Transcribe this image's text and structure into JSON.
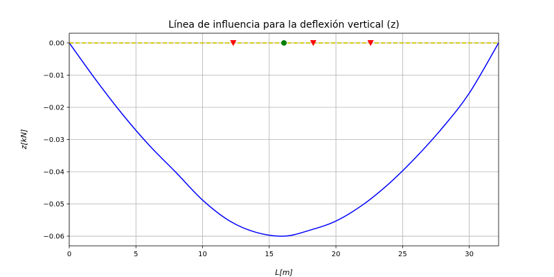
{
  "chart_data": {
    "type": "line",
    "title": "Línea de influencia para la deflexión vertical (z)",
    "xlabel": "L[m]",
    "ylabel": "z[kN]",
    "xlim": [
      0,
      32.2
    ],
    "ylim": [
      -0.063,
      0.003
    ],
    "x_ticks": [
      0,
      5,
      10,
      15,
      20,
      25,
      30
    ],
    "y_ticks": [
      0.0,
      -0.01,
      -0.02,
      -0.03,
      -0.04,
      -0.05,
      -0.06
    ],
    "x_tick_labels": [
      "0",
      "5",
      "10",
      "15",
      "20",
      "25",
      "30"
    ],
    "y_tick_labels": [
      "0.00",
      "−0.01",
      "−0.02",
      "−0.03",
      "−0.04",
      "−0.05",
      "−0.06"
    ],
    "grid": true,
    "series": [
      {
        "color": "#0000ff",
        "x": [
          0,
          2,
          4,
          6,
          8,
          10,
          12,
          14,
          16.1,
          18,
          20,
          22,
          24,
          26,
          28,
          30,
          32.2
        ],
        "y": [
          0.0,
          -0.0115,
          -0.0222,
          -0.0318,
          -0.0402,
          -0.0488,
          -0.0552,
          -0.0588,
          -0.06,
          -0.0582,
          -0.0553,
          -0.0503,
          -0.0436,
          -0.0355,
          -0.0263,
          -0.0156,
          0.0
        ]
      },
      {
        "color": "#ffa500",
        "style": "dashed",
        "x": [
          0,
          32.2
        ],
        "y": [
          0.0,
          0.0
        ]
      },
      {
        "color": "#c8c800",
        "style": "dashed",
        "x": [
          0,
          32.2
        ],
        "y": [
          0.0,
          0.0
        ]
      }
    ],
    "markers": [
      {
        "shape": "triangle-down",
        "color": "#ff0000",
        "x": 12.3,
        "y": 0.0
      },
      {
        "shape": "circle",
        "color": "#008000",
        "x": 16.1,
        "y": 0.0
      },
      {
        "shape": "triangle-down",
        "color": "#ff0000",
        "x": 18.3,
        "y": 0.0
      },
      {
        "shape": "triangle-down",
        "color": "#ff0000",
        "x": 22.6,
        "y": 0.0
      }
    ]
  }
}
